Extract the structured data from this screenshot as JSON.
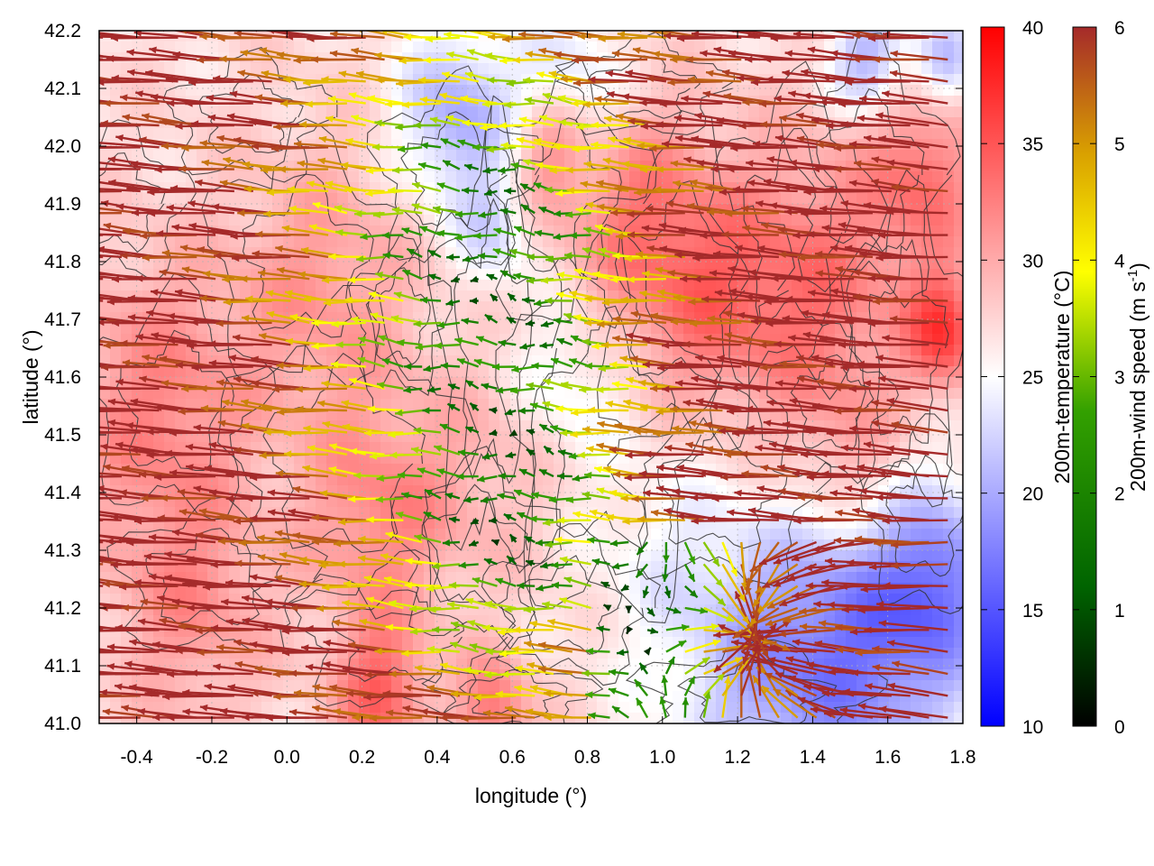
{
  "chart_data": {
    "type": "heatmap",
    "title": "",
    "xlabel": "longitude (°)",
    "ylabel": "latitude (°)",
    "xlim": [
      -0.5,
      1.8
    ],
    "ylim": [
      41.0,
      42.2
    ],
    "x_ticks": [
      "-0.4",
      "-0.2",
      "0.0",
      "0.2",
      "0.4",
      "0.6",
      "0.8",
      "1.0",
      "1.2",
      "1.4",
      "1.6",
      "1.8"
    ],
    "y_ticks": [
      "41.0",
      "41.1",
      "41.2",
      "41.3",
      "41.4",
      "41.5",
      "41.6",
      "41.7",
      "41.8",
      "41.9",
      "42.0",
      "42.1",
      "42.2"
    ],
    "grid": true,
    "layers": {
      "background": "200m-temperature field (°C)",
      "contours": "terrain height isolines",
      "vectors": "200m-wind vectors coloured by wind speed"
    },
    "temperature_colorbar": {
      "label": "200m-temperature (°C)",
      "range": [
        10,
        40
      ],
      "ticks": [
        "10",
        "15",
        "20",
        "25",
        "30",
        "35",
        "40"
      ],
      "colors": [
        "#0000ff",
        "#ffffff",
        "#ff0000"
      ]
    },
    "wind_colorbar": {
      "label_main": "200m-wind speed (m s",
      "label_exp": "-1",
      "label_close": ")",
      "range": [
        0,
        6
      ],
      "ticks": [
        "0",
        "1",
        "2",
        "3",
        "4",
        "5",
        "6"
      ],
      "colors": [
        "#000000",
        "#006400",
        "#33a000",
        "#ffff00",
        "#d9a000",
        "#a52a2a"
      ]
    },
    "temperature_field": {
      "base": 27,
      "features": [
        {
          "lon": -0.35,
          "lat": 41.55,
          "dT": 5,
          "r": 0.25
        },
        {
          "lon": -0.25,
          "lat": 41.2,
          "dT": 4,
          "r": 0.2
        },
        {
          "lon": 0.1,
          "lat": 41.75,
          "dT": 4,
          "r": 0.25
        },
        {
          "lon": 0.25,
          "lat": 41.35,
          "dT": 5,
          "r": 0.2
        },
        {
          "lon": 0.25,
          "lat": 41.05,
          "dT": 7,
          "r": 0.12
        },
        {
          "lon": 0.55,
          "lat": 41.02,
          "dT": 6,
          "r": 0.1
        },
        {
          "lon": 0.45,
          "lat": 42.05,
          "dT": -7,
          "r": 0.15
        },
        {
          "lon": 0.55,
          "lat": 41.85,
          "dT": -4,
          "r": 0.1
        },
        {
          "lon": 0.75,
          "lat": 42.08,
          "dT": -5,
          "r": 0.15
        },
        {
          "lon": 0.7,
          "lat": 42.0,
          "dT": 6,
          "r": 0.1
        },
        {
          "lon": 0.9,
          "lat": 41.9,
          "dT": 5,
          "r": 0.2
        },
        {
          "lon": 0.75,
          "lat": 41.6,
          "dT": -3,
          "r": 0.15
        },
        {
          "lon": 1.0,
          "lat": 41.3,
          "dT": -2,
          "r": 0.2
        },
        {
          "lon": 1.3,
          "lat": 41.1,
          "dT": -7,
          "r": 0.25
        },
        {
          "lon": 1.6,
          "lat": 41.15,
          "dT": -8,
          "r": 0.25
        },
        {
          "lon": 1.75,
          "lat": 41.25,
          "dT": -6,
          "r": 0.15
        },
        {
          "lon": 1.4,
          "lat": 41.75,
          "dT": 6,
          "r": 0.25
        },
        {
          "lon": 1.75,
          "lat": 41.68,
          "dT": 9,
          "r": 0.1
        },
        {
          "lon": 1.7,
          "lat": 41.95,
          "dT": 6,
          "r": 0.15
        },
        {
          "lon": 1.55,
          "lat": 42.15,
          "dT": -7,
          "r": 0.1
        },
        {
          "lon": 1.75,
          "lat": 42.15,
          "dT": -6,
          "r": 0.08
        },
        {
          "lon": 1.1,
          "lat": 41.75,
          "dT": 5,
          "r": 0.2
        },
        {
          "lon": 0.55,
          "lat": 41.45,
          "dT": 2,
          "r": 0.2
        },
        {
          "lon": 1.5,
          "lat": 41.45,
          "dT": 3,
          "r": 0.15
        }
      ]
    },
    "wind_field": {
      "note": "Vector field: u, v in m s-1",
      "u_components": [
        {
          "lon": 0.55,
          "lat": 41.8,
          "amp": -4,
          "r": 0.45
        },
        {
          "lon": 0.6,
          "lat": 41.35,
          "amp": -3,
          "r": 0.3
        },
        {
          "lon": 1.25,
          "lat": 41.15,
          "amp": 3,
          "r": 0.4
        }
      ],
      "background_u": -6.5,
      "background_v": 0.5,
      "convergence_center": {
        "lon": 1.25,
        "lat": 41.15
      },
      "arrow_scale": 0.045
    }
  }
}
